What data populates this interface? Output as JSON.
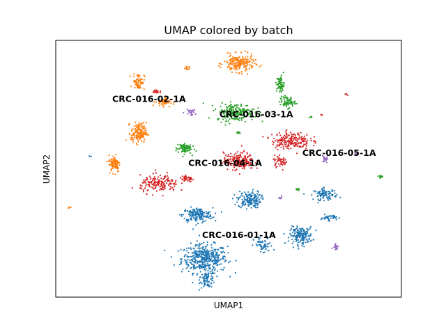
{
  "chart_data": {
    "type": "scatter",
    "title": "UMAP colored by batch",
    "xlabel": "UMAP1",
    "ylabel": "UMAP2",
    "xlim": [
      0,
      100
    ],
    "ylim": [
      0,
      100
    ],
    "grid": false,
    "legend": "on data",
    "series": [
      {
        "name": "CRC-016-01-1A",
        "color": "#1f77b4",
        "label_at": [
          53,
          24
        ],
        "clusters": [
          {
            "cx": 43,
            "cy": 15,
            "sx": 6,
            "sy": 5,
            "n": 420
          },
          {
            "cx": 44,
            "cy": 7,
            "sx": 2,
            "sy": 3,
            "n": 80
          },
          {
            "cx": 41,
            "cy": 32,
            "sx": 4,
            "sy": 2.5,
            "n": 180
          },
          {
            "cx": 56,
            "cy": 38,
            "sx": 3,
            "sy": 3,
            "n": 160
          },
          {
            "cx": 60,
            "cy": 20,
            "sx": 2.5,
            "sy": 3,
            "n": 60
          },
          {
            "cx": 71,
            "cy": 24,
            "sx": 3,
            "sy": 3,
            "n": 170
          },
          {
            "cx": 78,
            "cy": 40,
            "sx": 3,
            "sy": 2,
            "n": 90
          },
          {
            "cx": 79,
            "cy": 31,
            "sx": 2,
            "sy": 1,
            "n": 40
          },
          {
            "cx": 10,
            "cy": 55,
            "sx": 0.3,
            "sy": 0.3,
            "n": 3
          }
        ]
      },
      {
        "name": "CRC-016-02-1A",
        "color": "#ff7f0e",
        "label_at": [
          27,
          77
        ],
        "clusters": [
          {
            "cx": 53,
            "cy": 91,
            "sx": 4,
            "sy": 3,
            "n": 200
          },
          {
            "cx": 24,
            "cy": 84,
            "sx": 1.5,
            "sy": 3,
            "n": 70
          },
          {
            "cx": 31,
            "cy": 76,
            "sx": 2,
            "sy": 1.5,
            "n": 50
          },
          {
            "cx": 24,
            "cy": 64,
            "sx": 2,
            "sy": 3.5,
            "n": 150
          },
          {
            "cx": 17,
            "cy": 52,
            "sx": 1.5,
            "sy": 3,
            "n": 90
          },
          {
            "cx": 38,
            "cy": 89,
            "sx": 1,
            "sy": 1,
            "n": 12
          },
          {
            "cx": 4,
            "cy": 35,
            "sx": 0.3,
            "sy": 0.3,
            "n": 4
          }
        ]
      },
      {
        "name": "CRC-016-03-1A",
        "color": "#2ca02c",
        "label_at": [
          58,
          71
        ],
        "clusters": [
          {
            "cx": 52,
            "cy": 72,
            "sx": 5,
            "sy": 3,
            "n": 220
          },
          {
            "cx": 65,
            "cy": 83,
            "sx": 1,
            "sy": 3,
            "n": 70
          },
          {
            "cx": 67,
            "cy": 76,
            "sx": 2,
            "sy": 2,
            "n": 70
          },
          {
            "cx": 37,
            "cy": 58,
            "sx": 2,
            "sy": 2,
            "n": 80
          },
          {
            "cx": 53,
            "cy": 64,
            "sx": 1,
            "sy": 0.5,
            "n": 8
          },
          {
            "cx": 94,
            "cy": 47,
            "sx": 1,
            "sy": 0.5,
            "n": 12
          },
          {
            "cx": 70,
            "cy": 42,
            "sx": 0.5,
            "sy": 0.5,
            "n": 8
          },
          {
            "cx": 74,
            "cy": 70,
            "sx": 0.5,
            "sy": 0.3,
            "n": 4
          }
        ]
      },
      {
        "name": "CRC-016-04-1A",
        "color": "#d62728",
        "label_at": [
          49,
          52
        ],
        "clusters": [
          {
            "cx": 53,
            "cy": 53,
            "sx": 4,
            "sy": 3,
            "n": 200
          },
          {
            "cx": 68,
            "cy": 61,
            "sx": 5,
            "sy": 3,
            "n": 200
          },
          {
            "cx": 65,
            "cy": 53,
            "sx": 2,
            "sy": 2,
            "n": 50
          },
          {
            "cx": 30,
            "cy": 44,
            "sx": 5,
            "sy": 3,
            "n": 170
          },
          {
            "cx": 38,
            "cy": 46,
            "sx": 2,
            "sy": 1,
            "n": 40
          },
          {
            "cx": 29,
            "cy": 80,
            "sx": 1,
            "sy": 1,
            "n": 18
          },
          {
            "cx": 77,
            "cy": 71,
            "sx": 0.3,
            "sy": 0.3,
            "n": 3
          },
          {
            "cx": 84,
            "cy": 79,
            "sx": 0.5,
            "sy": 0.5,
            "n": 4
          }
        ]
      },
      {
        "name": "CRC-016-05-1A",
        "color": "#9467bd",
        "label_at": [
          82,
          56
        ],
        "clusters": [
          {
            "cx": 78,
            "cy": 54,
            "sx": 0.8,
            "sy": 1.5,
            "n": 20
          },
          {
            "cx": 39,
            "cy": 72,
            "sx": 1.5,
            "sy": 1,
            "n": 25
          },
          {
            "cx": 81,
            "cy": 20,
            "sx": 0.7,
            "sy": 1.5,
            "n": 20
          },
          {
            "cx": 65,
            "cy": 39,
            "sx": 0.6,
            "sy": 0.8,
            "n": 8
          },
          {
            "cx": 87,
            "cy": 56,
            "sx": 0.4,
            "sy": 0.4,
            "n": 4
          }
        ]
      }
    ]
  }
}
